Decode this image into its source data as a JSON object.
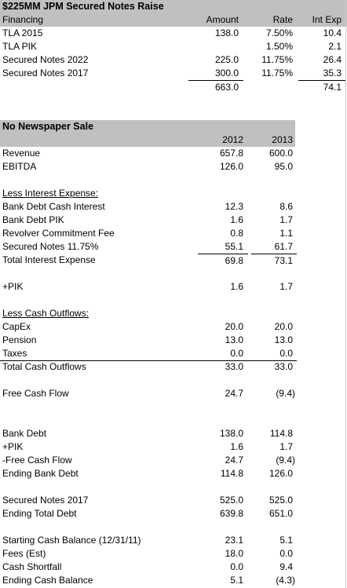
{
  "section1": {
    "title": "$225MM JPM Secured Notes Raise",
    "headers": {
      "label": "Financing",
      "amount": "Amount",
      "rate": "Rate",
      "int": "Int Exp"
    },
    "rows": [
      {
        "label": "TLA 2015",
        "amount": "138.0",
        "rate": "7.50%",
        "int": "10.4"
      },
      {
        "label": "TLA PIK",
        "amount": "",
        "rate": "1.50%",
        "int": "2.1"
      },
      {
        "label": "Secured Notes 2022",
        "amount": "225.0",
        "rate": "11.75%",
        "int": "26.4"
      },
      {
        "label": "Secured Notes 2017",
        "amount": "300.0",
        "rate": "11.75%",
        "int": "35.3"
      }
    ],
    "total_amount": "663.0",
    "total_int": "74.1"
  },
  "section2": {
    "title": "No Newspaper Sale",
    "years": [
      "2012",
      "2013"
    ],
    "revenue": {
      "label": "Revenue",
      "v": [
        "657.8",
        "600.0"
      ]
    },
    "ebitda": {
      "label": "EBITDA",
      "v": [
        "126.0",
        "95.0"
      ]
    },
    "interest_heading": "Less Interest Expense:",
    "interest_rows": [
      {
        "label": "Bank Debt Cash Interest",
        "v": [
          "12.3",
          "8.6"
        ]
      },
      {
        "label": "Bank Debt PIK",
        "v": [
          "1.6",
          "1.7"
        ]
      },
      {
        "label": "Revolver Commitment Fee",
        "v": [
          "0.8",
          "1.1"
        ]
      },
      {
        "label": "Secured Notes 11.75%",
        "v": [
          "55.1",
          "61.7"
        ]
      }
    ],
    "total_interest": {
      "label": "Total Interest Expense",
      "v": [
        "69.8",
        "73.1"
      ]
    },
    "pik": {
      "label": "+PIK",
      "v": [
        "1.6",
        "1.7"
      ]
    },
    "cash_heading": "Less Cash Outflows:",
    "cash_rows": [
      {
        "label": "CapEx",
        "v": [
          "20.0",
          "20.0"
        ]
      },
      {
        "label": "Pension",
        "v": [
          "13.0",
          "13.0"
        ]
      },
      {
        "label": "Taxes",
        "v": [
          "0.0",
          "0.0"
        ]
      }
    ],
    "total_cash": {
      "label": "Total Cash Outflows",
      "v": [
        "33.0",
        "33.0"
      ]
    },
    "fcf": {
      "label": "Free Cash Flow",
      "v": [
        "24.7",
        "(9.4)"
      ]
    },
    "bank_rows": [
      {
        "label": "Bank Debt",
        "v": [
          "138.0",
          "114.8"
        ]
      },
      {
        "label": "+PIK",
        "v": [
          "1.6",
          "1.7"
        ]
      },
      {
        "label": "-Free Cash Flow",
        "v": [
          "24.7",
          "(9.4)"
        ]
      }
    ],
    "ending_bank": {
      "label": "Ending Bank Debt",
      "v": [
        "114.8",
        "126.0"
      ]
    },
    "sec_notes": {
      "label": "Secured Notes 2017",
      "v": [
        "525.0",
        "525.0"
      ]
    },
    "ending_total": {
      "label": "Ending Total Debt",
      "v": [
        "639.8",
        "651.0"
      ]
    },
    "cash_bal_rows": [
      {
        "label": "Starting Cash Balance (12/31/11)",
        "v": [
          "23.1",
          "5.1"
        ]
      },
      {
        "label": "Fees (Est)",
        "v": [
          "18.0",
          "0.0"
        ]
      },
      {
        "label": "Cash Shortfall",
        "v": [
          "0.0",
          "9.4"
        ]
      }
    ],
    "ending_cash": {
      "label": "Ending Cash Balance",
      "v": [
        "5.1",
        "(4.3)"
      ]
    }
  }
}
